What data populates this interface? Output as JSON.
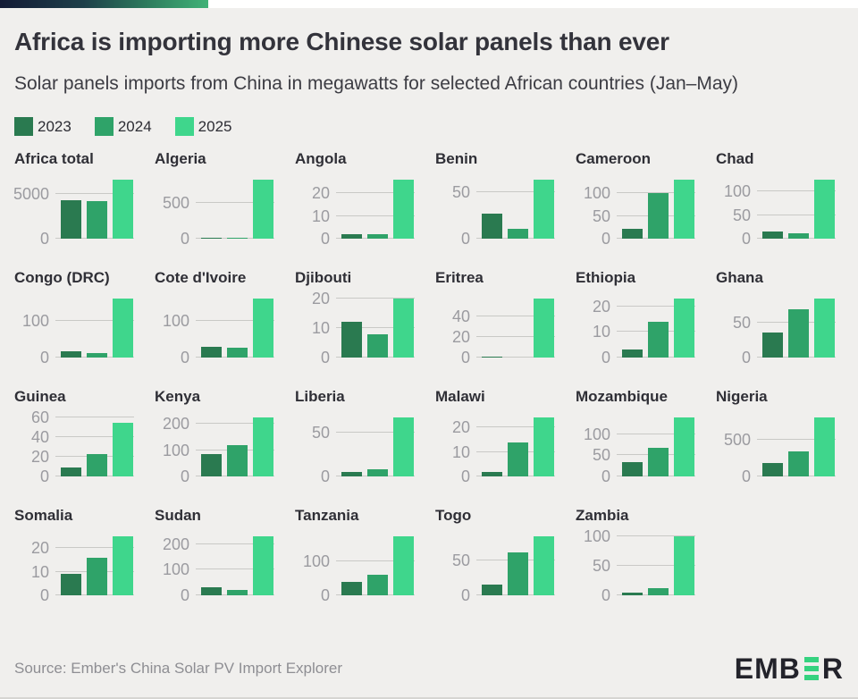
{
  "header": {
    "title": "Africa is importing more Chinese solar panels than ever",
    "subtitle": "Solar panels imports from China in megawatts for selected African countries (Jan–May)"
  },
  "legend": {
    "items": [
      {
        "label": "2023",
        "color": "#2a7a50"
      },
      {
        "label": "2024",
        "color": "#2fa369"
      },
      {
        "label": "2025",
        "color": "#3fd68c"
      }
    ]
  },
  "footer": {
    "source": "Source: Ember's China Solar PV Import Explorer",
    "logo_prefix": "EMB",
    "logo_suffix": "R",
    "logo_accent_color": "#35d27f"
  },
  "chart_data": {
    "type": "bar",
    "unit": "megawatts",
    "categories": [
      "2023",
      "2024",
      "2025"
    ],
    "series_colors": [
      "#2a7a50",
      "#2fa369",
      "#3fd68c"
    ],
    "legend_position": "top-left",
    "grid": true,
    "charts": [
      {
        "title": "Africa total",
        "ticks": [
          0,
          5000
        ],
        "values": [
          4300,
          4200,
          6600
        ]
      },
      {
        "title": "Algeria",
        "ticks": [
          0,
          500
        ],
        "values": [
          2,
          8,
          820
        ]
      },
      {
        "title": "Angola",
        "ticks": [
          0,
          10,
          20
        ],
        "values": [
          2,
          2,
          26
        ]
      },
      {
        "title": "Benin",
        "ticks": [
          0,
          50
        ],
        "values": [
          27,
          11,
          64
        ]
      },
      {
        "title": "Cameroon",
        "ticks": [
          0,
          50,
          100
        ],
        "values": [
          22,
          100,
          130
        ]
      },
      {
        "title": "Chad",
        "ticks": [
          0,
          50,
          100
        ],
        "values": [
          15,
          12,
          125
        ]
      },
      {
        "title": "Congo (DRC)",
        "ticks": [
          0,
          100
        ],
        "values": [
          18,
          12,
          160
        ]
      },
      {
        "title": "Cote d'Ivoire",
        "ticks": [
          0,
          100
        ],
        "values": [
          30,
          26,
          160
        ]
      },
      {
        "title": "Djibouti",
        "ticks": [
          0,
          10,
          20
        ],
        "values": [
          12,
          8,
          20
        ]
      },
      {
        "title": "Eritrea",
        "ticks": [
          0,
          20,
          40
        ],
        "values": [
          1,
          0,
          57
        ]
      },
      {
        "title": "Ethiopia",
        "ticks": [
          0,
          10,
          20
        ],
        "values": [
          3,
          14,
          23
        ]
      },
      {
        "title": "Ghana",
        "ticks": [
          0,
          50
        ],
        "values": [
          36,
          70,
          85
        ]
      },
      {
        "title": "Guinea",
        "ticks": [
          0,
          20,
          40,
          60
        ],
        "values": [
          9,
          23,
          55
        ]
      },
      {
        "title": "Kenya",
        "ticks": [
          0,
          100,
          200
        ],
        "values": [
          85,
          120,
          225
        ]
      },
      {
        "title": "Liberia",
        "ticks": [
          0,
          50
        ],
        "values": [
          5,
          8,
          68
        ]
      },
      {
        "title": "Malawi",
        "ticks": [
          0,
          10,
          20
        ],
        "values": [
          2,
          14,
          24
        ]
      },
      {
        "title": "Mozambique",
        "ticks": [
          0,
          50,
          100
        ],
        "values": [
          35,
          68,
          140
        ]
      },
      {
        "title": "Nigeria",
        "ticks": [
          0,
          500
        ],
        "values": [
          180,
          340,
          800
        ]
      },
      {
        "title": "Somalia",
        "ticks": [
          0,
          10,
          20
        ],
        "values": [
          9,
          16,
          25
        ]
      },
      {
        "title": "Sudan",
        "ticks": [
          0,
          100,
          200
        ],
        "values": [
          30,
          20,
          230
        ]
      },
      {
        "title": "Tanzania",
        "ticks": [
          0,
          100
        ],
        "values": [
          40,
          60,
          175
        ]
      },
      {
        "title": "Togo",
        "ticks": [
          0,
          50
        ],
        "values": [
          15,
          62,
          85
        ]
      },
      {
        "title": "Zambia",
        "ticks": [
          0,
          50,
          100
        ],
        "values": [
          4,
          12,
          100
        ]
      }
    ]
  }
}
